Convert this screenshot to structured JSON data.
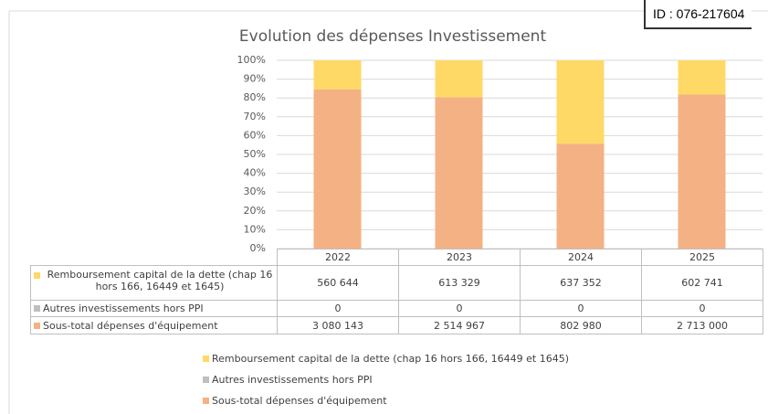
{
  "chart_data": {
    "type": "stacked100",
    "title": "Evolution des dépenses Investissement",
    "stamp": "ID : 076-217604",
    "categories": [
      "2022",
      "2023",
      "2024",
      "2025"
    ],
    "series": [
      {
        "name": "Remboursement capital de la dette (chap 16 hors 166, 16449 et 1645)",
        "color": "#ffd966",
        "values": [
          560644,
          613329,
          637352,
          602741
        ],
        "value_labels": [
          "560 644",
          "613 329",
          "637 352",
          "602 741"
        ]
      },
      {
        "name": "Autres investissements hors PPI",
        "color": "#bfbfbf",
        "values": [
          0,
          0,
          0,
          0
        ],
        "value_labels": [
          "0",
          "0",
          "0",
          "0"
        ]
      },
      {
        "name": "Sous-total dépenses d'équipement",
        "color": "#f4b183",
        "values": [
          3080143,
          2514967,
          802980,
          2713000
        ],
        "value_labels": [
          "3 080 143",
          "2 514 967",
          "802 980",
          "2 713 000"
        ]
      }
    ],
    "ylim": [
      0,
      100
    ],
    "yticks": [
      {
        "value": 0,
        "label": "0%"
      },
      {
        "value": 10,
        "label": "10%"
      },
      {
        "value": 20,
        "label": "20%"
      },
      {
        "value": 30,
        "label": "30%"
      },
      {
        "value": 40,
        "label": "40%"
      },
      {
        "value": 50,
        "label": "50%"
      },
      {
        "value": 60,
        "label": "60%"
      },
      {
        "value": 70,
        "label": "70%"
      },
      {
        "value": 80,
        "label": "80%"
      },
      {
        "value": 90,
        "label": "90%"
      },
      {
        "value": 100,
        "label": "100%"
      }
    ],
    "grid": true
  }
}
